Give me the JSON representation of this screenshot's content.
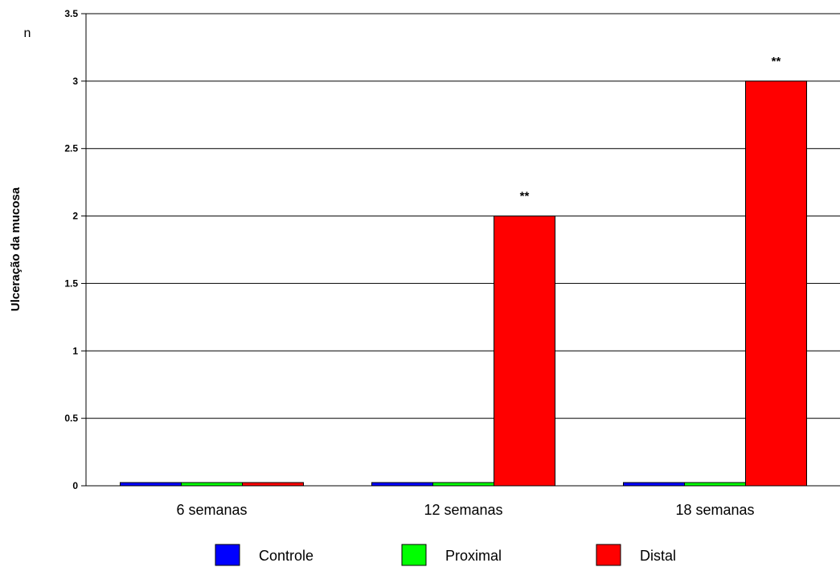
{
  "chart_data": {
    "type": "bar",
    "categories": [
      "6 semanas",
      "12 semanas",
      "18 semanas"
    ],
    "series": [
      {
        "name": "Controle",
        "color": "#0000ff",
        "values": [
          0,
          0,
          0
        ]
      },
      {
        "name": "Proximal",
        "color": "#00ff00",
        "values": [
          0,
          0,
          0
        ]
      },
      {
        "name": "Distal",
        "color": "#ff0000",
        "values": [
          0,
          2,
          3
        ]
      }
    ],
    "ylabel": "Ulceração da mucosa",
    "unit_label": "n",
    "ylim": [
      0,
      3.5
    ],
    "yticks": [
      "0",
      "0.5",
      "1",
      "1.5",
      "2",
      "2.5",
      "3",
      "3.5"
    ],
    "ytick_values": [
      0,
      0.5,
      1,
      1.5,
      2,
      2.5,
      3,
      3.5
    ],
    "grid": true,
    "legend_position": "bottom",
    "annotations": [
      {
        "series": "Distal",
        "category": "12 semanas",
        "text": "**"
      },
      {
        "series": "Distal",
        "category": "18 semanas",
        "text": "**"
      }
    ]
  }
}
